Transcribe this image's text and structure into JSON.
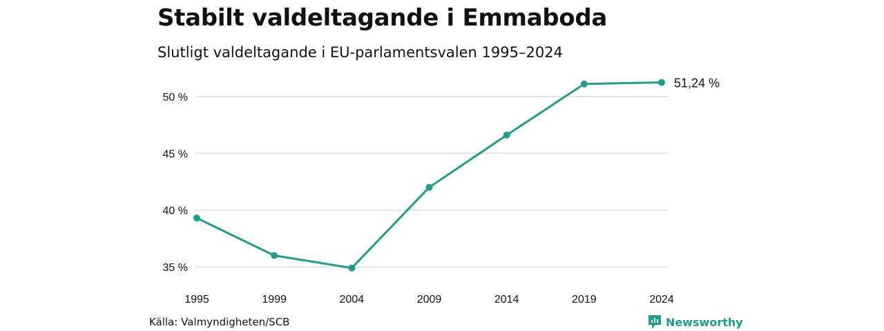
{
  "header": {
    "title": "Stabilt valdeltagande i Emmaboda",
    "subtitle": "Slutligt valdeltagande i EU-parlamentsvalen 1995–2024"
  },
  "footer": {
    "source": "Källa: Valmyndigheten/SCB",
    "brand": "Newsworthy"
  },
  "colors": {
    "line": "#1f9c8a",
    "grid": "#dddddd",
    "brand": "#1f9c8a"
  },
  "chart_data": {
    "type": "line",
    "x": [
      "1995",
      "1999",
      "2004",
      "2009",
      "2014",
      "2019",
      "2024"
    ],
    "series": [
      {
        "values": [
          39.3,
          36.0,
          34.9,
          42.0,
          46.6,
          51.1,
          51.24
        ]
      }
    ],
    "y_ticks": [
      {
        "value": 35,
        "label": "35 %"
      },
      {
        "value": 40,
        "label": "40 %"
      },
      {
        "value": 45,
        "label": "45 %"
      },
      {
        "value": 50,
        "label": "50 %"
      }
    ],
    "ylim": [
      35,
      51.24
    ],
    "end_label": "51,24 %",
    "grid": true
  }
}
